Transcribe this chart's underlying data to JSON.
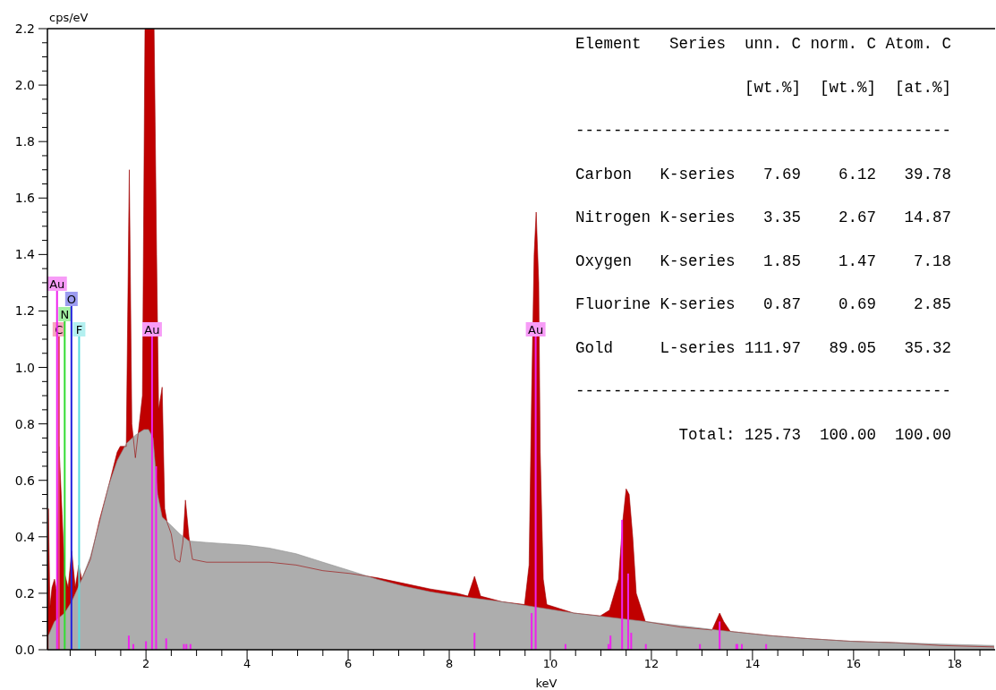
{
  "chart_data": {
    "type": "area",
    "xlabel": "keV",
    "ylabel": "cps/eV",
    "xlim": [
      0.05,
      18.8
    ],
    "ylim": [
      0,
      2.2
    ],
    "xticks": [
      {
        "value": 0.5,
        "label": null
      },
      {
        "value": 1,
        "label": null
      },
      {
        "value": 1.5,
        "label": null
      },
      2,
      {
        "value": 2.5,
        "label": null
      },
      {
        "value": 3,
        "label": null
      },
      {
        "value": 3.5,
        "label": null
      },
      4,
      {
        "value": 4.5,
        "label": null
      },
      {
        "value": 5,
        "label": null
      },
      {
        "value": 5.5,
        "label": null
      },
      6,
      {
        "value": 6.5,
        "label": null
      },
      {
        "value": 7,
        "label": null
      },
      {
        "value": 7.5,
        "label": null
      },
      8,
      {
        "value": 8.5,
        "label": null
      },
      {
        "value": 9,
        "label": null
      },
      {
        "value": 9.5,
        "label": null
      },
      10,
      {
        "value": 10.5,
        "label": null
      },
      {
        "value": 11,
        "label": null
      },
      {
        "value": 11.5,
        "label": null
      },
      12,
      {
        "value": 12.5,
        "label": null
      },
      {
        "value": 13,
        "label": null
      },
      {
        "value": 13.5,
        "label": null
      },
      14,
      {
        "value": 14.5,
        "label": null
      },
      {
        "value": 15,
        "label": null
      },
      {
        "value": 15.5,
        "label": null
      },
      16,
      {
        "value": 16.5,
        "label": null
      },
      {
        "value": 17,
        "label": null
      },
      {
        "value": 17.5,
        "label": null
      },
      18,
      {
        "value": 18.5,
        "label": null
      }
    ],
    "yticks": [
      {
        "value": 0,
        "label": "0.0"
      },
      {
        "value": 0.05,
        "label": null
      },
      {
        "value": 0.1,
        "label": null
      },
      {
        "value": 0.15,
        "label": null
      },
      {
        "value": 0.2,
        "label": "0.2"
      },
      {
        "value": 0.25,
        "label": null
      },
      {
        "value": 0.3,
        "label": null
      },
      {
        "value": 0.35,
        "label": null
      },
      {
        "value": 0.4,
        "label": "0.4"
      },
      {
        "value": 0.45,
        "label": null
      },
      {
        "value": 0.5,
        "label": null
      },
      {
        "value": 0.55,
        "label": null
      },
      {
        "value": 0.6,
        "label": "0.6"
      },
      {
        "value": 0.65,
        "label": null
      },
      {
        "value": 0.7,
        "label": null
      },
      {
        "value": 0.75,
        "label": null
      },
      {
        "value": 0.8,
        "label": "0.8"
      },
      {
        "value": 0.85,
        "label": null
      },
      {
        "value": 0.9,
        "label": null
      },
      {
        "value": 0.95,
        "label": null
      },
      {
        "value": 1,
        "label": "1.0"
      },
      {
        "value": 1.05,
        "label": null
      },
      {
        "value": 1.1,
        "label": null
      },
      {
        "value": 1.15,
        "label": null
      },
      {
        "value": 1.2,
        "label": "1.2"
      },
      {
        "value": 1.25,
        "label": null
      },
      {
        "value": 1.3,
        "label": null
      },
      {
        "value": 1.35,
        "label": null
      },
      {
        "value": 1.4,
        "label": "1.4"
      },
      {
        "value": 1.45,
        "label": null
      },
      {
        "value": 1.5,
        "label": null
      },
      {
        "value": 1.55,
        "label": null
      },
      {
        "value": 1.6,
        "label": "1.6"
      },
      {
        "value": 1.65,
        "label": null
      },
      {
        "value": 1.7,
        "label": null
      },
      {
        "value": 1.75,
        "label": null
      },
      {
        "value": 1.8,
        "label": "1.8"
      },
      {
        "value": 1.85,
        "label": null
      },
      {
        "value": 1.9,
        "label": null
      },
      {
        "value": 1.95,
        "label": null
      },
      {
        "value": 2,
        "label": "2.0"
      },
      {
        "value": 2.05,
        "label": null
      },
      {
        "value": 2.1,
        "label": null
      },
      {
        "value": 2.15,
        "label": null
      },
      {
        "value": 2.2,
        "label": "2.2"
      }
    ],
    "series": [
      {
        "color": "#c00000",
        "x": [
          0.05,
          0.07,
          0.1,
          0.14,
          0.19,
          0.24,
          0.28,
          0.34,
          0.39,
          0.46,
          0.53,
          0.6,
          0.67,
          0.73,
          0.9,
          1.08,
          1.26,
          1.43,
          1.49,
          1.61,
          1.67,
          1.72,
          1.79,
          1.88,
          1.93,
          1.98,
          2.05,
          2.14,
          2.16,
          2.21,
          2.25,
          2.32,
          2.37,
          2.42,
          2.5,
          2.58,
          2.67,
          2.73,
          2.78,
          2.85,
          2.92,
          3.2,
          4,
          4.44,
          4.97,
          5.5,
          6.04,
          6.57,
          7.1,
          7.63,
          8.16,
          8.37,
          8.5,
          8.62,
          9.04,
          9.49,
          9.58,
          9.63,
          9.68,
          9.72,
          9.77,
          9.8,
          9.86,
          9.93,
          10.46,
          10.99,
          11.17,
          11.35,
          11.43,
          11.5,
          11.56,
          11.63,
          11.7,
          11.88,
          12.58,
          13.2,
          13.35,
          13.43,
          13.56,
          14.35,
          15.06,
          15.95,
          16.83,
          17.72,
          18.78
        ],
        "values": [
          0.1,
          0.5,
          0.15,
          0.22,
          0.25,
          0.2,
          0.72,
          0.48,
          0.27,
          0.22,
          0.35,
          0.22,
          0.3,
          0.25,
          0.32,
          0.46,
          0.58,
          0.7,
          0.72,
          0.72,
          1.7,
          0.8,
          0.68,
          0.82,
          0.9,
          2.2,
          2.2,
          2.2,
          2.2,
          1.4,
          0.85,
          0.93,
          0.5,
          0.45,
          0.41,
          0.32,
          0.31,
          0.38,
          0.53,
          0.4,
          0.32,
          0.31,
          0.31,
          0.31,
          0.3,
          0.28,
          0.27,
          0.255,
          0.235,
          0.215,
          0.2,
          0.19,
          0.26,
          0.19,
          0.17,
          0.16,
          0.3,
          0.9,
          1.4,
          1.55,
          1.3,
          0.7,
          0.25,
          0.16,
          0.13,
          0.12,
          0.14,
          0.25,
          0.45,
          0.57,
          0.55,
          0.4,
          0.2,
          0.1,
          0.08,
          0.07,
          0.13,
          0.1,
          0.065,
          0.05,
          0.04,
          0.03,
          0.025,
          0.015,
          0.01
        ]
      },
      {
        "color": "#adadad",
        "x": [
          0.07,
          0.19,
          0.39,
          0.53,
          0.73,
          0.9,
          1.08,
          1.26,
          1.43,
          1.61,
          1.79,
          1.96,
          2.05,
          2.14,
          2.23,
          2.32,
          2.5,
          2.67,
          2.85,
          3.2,
          4,
          4.44,
          4.97,
          5.5,
          6.04,
          6.57,
          7.1,
          7.63,
          8.16,
          9.04,
          9.75,
          10.46,
          11.17,
          11.88,
          12.58,
          13.29,
          14.35,
          15.06,
          15.95,
          16.83,
          17.72,
          18.78
        ],
        "values": [
          0.05,
          0.1,
          0.13,
          0.17,
          0.25,
          0.33,
          0.45,
          0.58,
          0.67,
          0.73,
          0.76,
          0.78,
          0.78,
          0.75,
          0.55,
          0.47,
          0.44,
          0.41,
          0.385,
          0.38,
          0.37,
          0.36,
          0.34,
          0.31,
          0.28,
          0.25,
          0.225,
          0.205,
          0.19,
          0.17,
          0.15,
          0.13,
          0.115,
          0.1,
          0.085,
          0.07,
          0.05,
          0.04,
          0.03,
          0.025,
          0.02,
          0.015
        ]
      },
      {
        "type": "bar",
        "color": "#ee22ee",
        "x": [
          1.66,
          1.75,
          2.0,
          2.2,
          2.4,
          2.75,
          2.8,
          2.88,
          8.5,
          9.63,
          10.3,
          11.15,
          11.19,
          11.42,
          11.54,
          11.6,
          11.89,
          12.96,
          13.35,
          13.68,
          13.7,
          13.79,
          14.27
        ],
        "values": [
          0.05,
          0.02,
          0.03,
          0.65,
          0.04,
          0.02,
          0.02,
          0.02,
          0.06,
          0.13,
          0.02,
          0.02,
          0.05,
          0.46,
          0.27,
          0.06,
          0.02,
          0.02,
          0.1,
          0.02,
          0.02,
          0.02,
          0.02
        ]
      }
    ],
    "ref_lines": [
      {
        "axis": "x",
        "value": 0.277,
        "label": "C",
        "color": "#e8406a"
      },
      {
        "axis": "x",
        "value": 0.677,
        "label": "F",
        "color": "#55dddd"
      },
      {
        "axis": "x",
        "value": 0.392,
        "label": "N",
        "color": "#33dd33"
      },
      {
        "axis": "x",
        "value": 0.525,
        "label": "O",
        "color": "#2222dd"
      },
      {
        "axis": "x",
        "value": 0.24,
        "label": "Au",
        "color": "#ee22ee"
      },
      {
        "axis": "x",
        "value": 2.12,
        "label": "Au",
        "color": "#ee22ee"
      },
      {
        "axis": "x",
        "value": 9.71,
        "label": "Au",
        "color": "#ee22ee"
      }
    ],
    "annotations": [
      "Element   Series  unn. C norm. C Atom. C",
      "                  [wt.%]  [wt.%]  [at.%]",
      "----------------------------------------",
      "Carbon   K-series   7.69    6.12   39.78",
      "Nitrogen K-series   3.35    2.67   14.87",
      "Oxygen   K-series   1.85    1.47    7.18",
      "Fluorine K-series   0.87    0.69    2.85",
      "Gold     L-series 111.97   89.05   35.32",
      "----------------------------------------",
      "           Total: 125.73  100.00  100.00"
    ]
  }
}
